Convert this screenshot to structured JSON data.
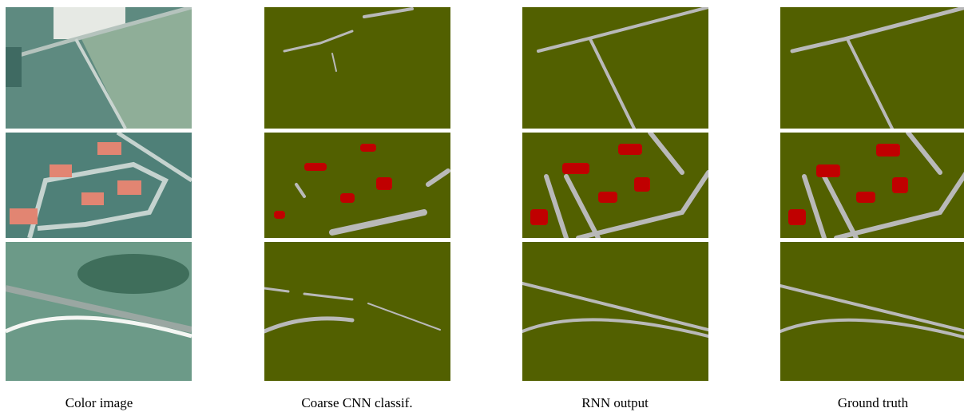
{
  "figure": {
    "columns": [
      {
        "caption": "Color image"
      },
      {
        "caption": "Coarse CNN classif."
      },
      {
        "caption": "RNN output"
      },
      {
        "caption": "Ground truth"
      }
    ]
  }
}
